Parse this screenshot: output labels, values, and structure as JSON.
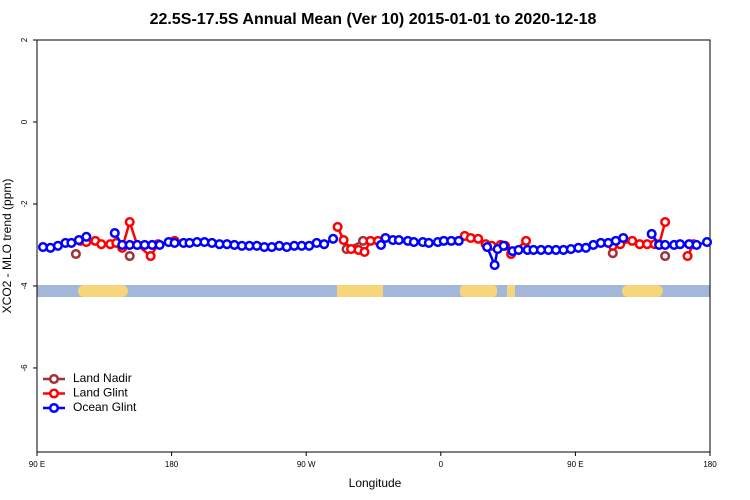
{
  "chart_data": {
    "type": "line",
    "title": "22.5S-17.5S Annual Mean (Ver 10)   2015-01-01 to 2020-12-18",
    "xlabel": "Longitude",
    "ylabel": "XCO2 - MLO trend (ppm)",
    "xlim": [
      90,
      540
    ],
    "ylim": [
      -8.05,
      2
    ],
    "xticks": [
      {
        "value": 90,
        "label": "90 E"
      },
      {
        "value": 180,
        "label": "180"
      },
      {
        "value": 270,
        "label": "90 W"
      },
      {
        "value": 360,
        "label": "0"
      },
      {
        "value": 450,
        "label": "90 E"
      },
      {
        "value": 540,
        "label": "180"
      }
    ],
    "yticks": [
      -6,
      -4,
      -2,
      0,
      2
    ],
    "legend": "bottom-left",
    "series": [
      {
        "name": "Land Nadir",
        "color": "#a0303a",
        "x": [
          116,
          152,
          297,
          308,
          475,
          510
        ],
        "values": [
          -3.22,
          -3.27,
          -3.1,
          -2.9,
          -3.2,
          -3.27
        ]
      },
      {
        "name": "Land Glint",
        "color": "#ff0000",
        "x": [
          119,
          123,
          129,
          133,
          139,
          143,
          147,
          152,
          157,
          166,
          171,
          182,
          291,
          295,
          300,
          305,
          309,
          313,
          318,
          376,
          380,
          385,
          390,
          394,
          400,
          403,
          407,
          417,
          475,
          480,
          488,
          493,
          498,
          503,
          506,
          510,
          525,
          529
        ],
        "values": [
          -2.9,
          -2.93,
          -2.9,
          -2.98,
          -2.98,
          -2.95,
          -3.07,
          -2.44,
          -3.0,
          -3.27,
          -2.98,
          -2.9,
          -2.56,
          -2.88,
          -3.1,
          -3.12,
          -3.17,
          -2.9,
          -2.9,
          -2.78,
          -2.83,
          -2.85,
          -2.98,
          -3.02,
          -3.0,
          -3.02,
          -3.22,
          -2.9,
          -3.02,
          -2.98,
          -2.9,
          -2.98,
          -2.98,
          -2.98,
          -2.98,
          -2.44,
          -3.27,
          -2.98
        ]
      },
      {
        "name": "Ocean Glint",
        "color": "#0000ff",
        "x": [
          94,
          99,
          104,
          109,
          113,
          118,
          123,
          142,
          147,
          152,
          157,
          162,
          167,
          172,
          178,
          182,
          188,
          192,
          197,
          202,
          207,
          212,
          217,
          222,
          227,
          232,
          237,
          242,
          247,
          252,
          257,
          262,
          267,
          272,
          277,
          282,
          288,
          320,
          323,
          328,
          332,
          338,
          342,
          348,
          352,
          358,
          362,
          367,
          372,
          391,
          396,
          398,
          402,
          408,
          412,
          418,
          422,
          427,
          432,
          437,
          442,
          447,
          452,
          457,
          462,
          467,
          472,
          477,
          482,
          501,
          506,
          510,
          516,
          520,
          526,
          531,
          538
        ],
        "values": [
          -3.05,
          -3.07,
          -3.02,
          -2.95,
          -2.95,
          -2.88,
          -2.8,
          -2.71,
          -3.0,
          -3.0,
          -3.0,
          -3.0,
          -3.0,
          -3.0,
          -2.93,
          -2.95,
          -2.95,
          -2.95,
          -2.93,
          -2.93,
          -2.95,
          -2.98,
          -2.98,
          -3.0,
          -3.02,
          -3.02,
          -3.02,
          -3.05,
          -3.05,
          -3.02,
          -3.05,
          -3.02,
          -3.02,
          -3.02,
          -2.95,
          -2.98,
          -2.85,
          -3.0,
          -2.83,
          -2.88,
          -2.88,
          -2.9,
          -2.93,
          -2.93,
          -2.95,
          -2.93,
          -2.9,
          -2.9,
          -2.9,
          -3.05,
          -3.49,
          -3.1,
          -3.02,
          -3.15,
          -3.12,
          -3.12,
          -3.12,
          -3.12,
          -3.12,
          -3.12,
          -3.12,
          -3.1,
          -3.07,
          -3.07,
          -3.0,
          -2.95,
          -2.95,
          -2.9,
          -2.83,
          -2.73,
          -3.0,
          -3.0,
          -3.0,
          -2.98,
          -2.98,
          -3.0,
          -2.93
        ]
      }
    ]
  }
}
